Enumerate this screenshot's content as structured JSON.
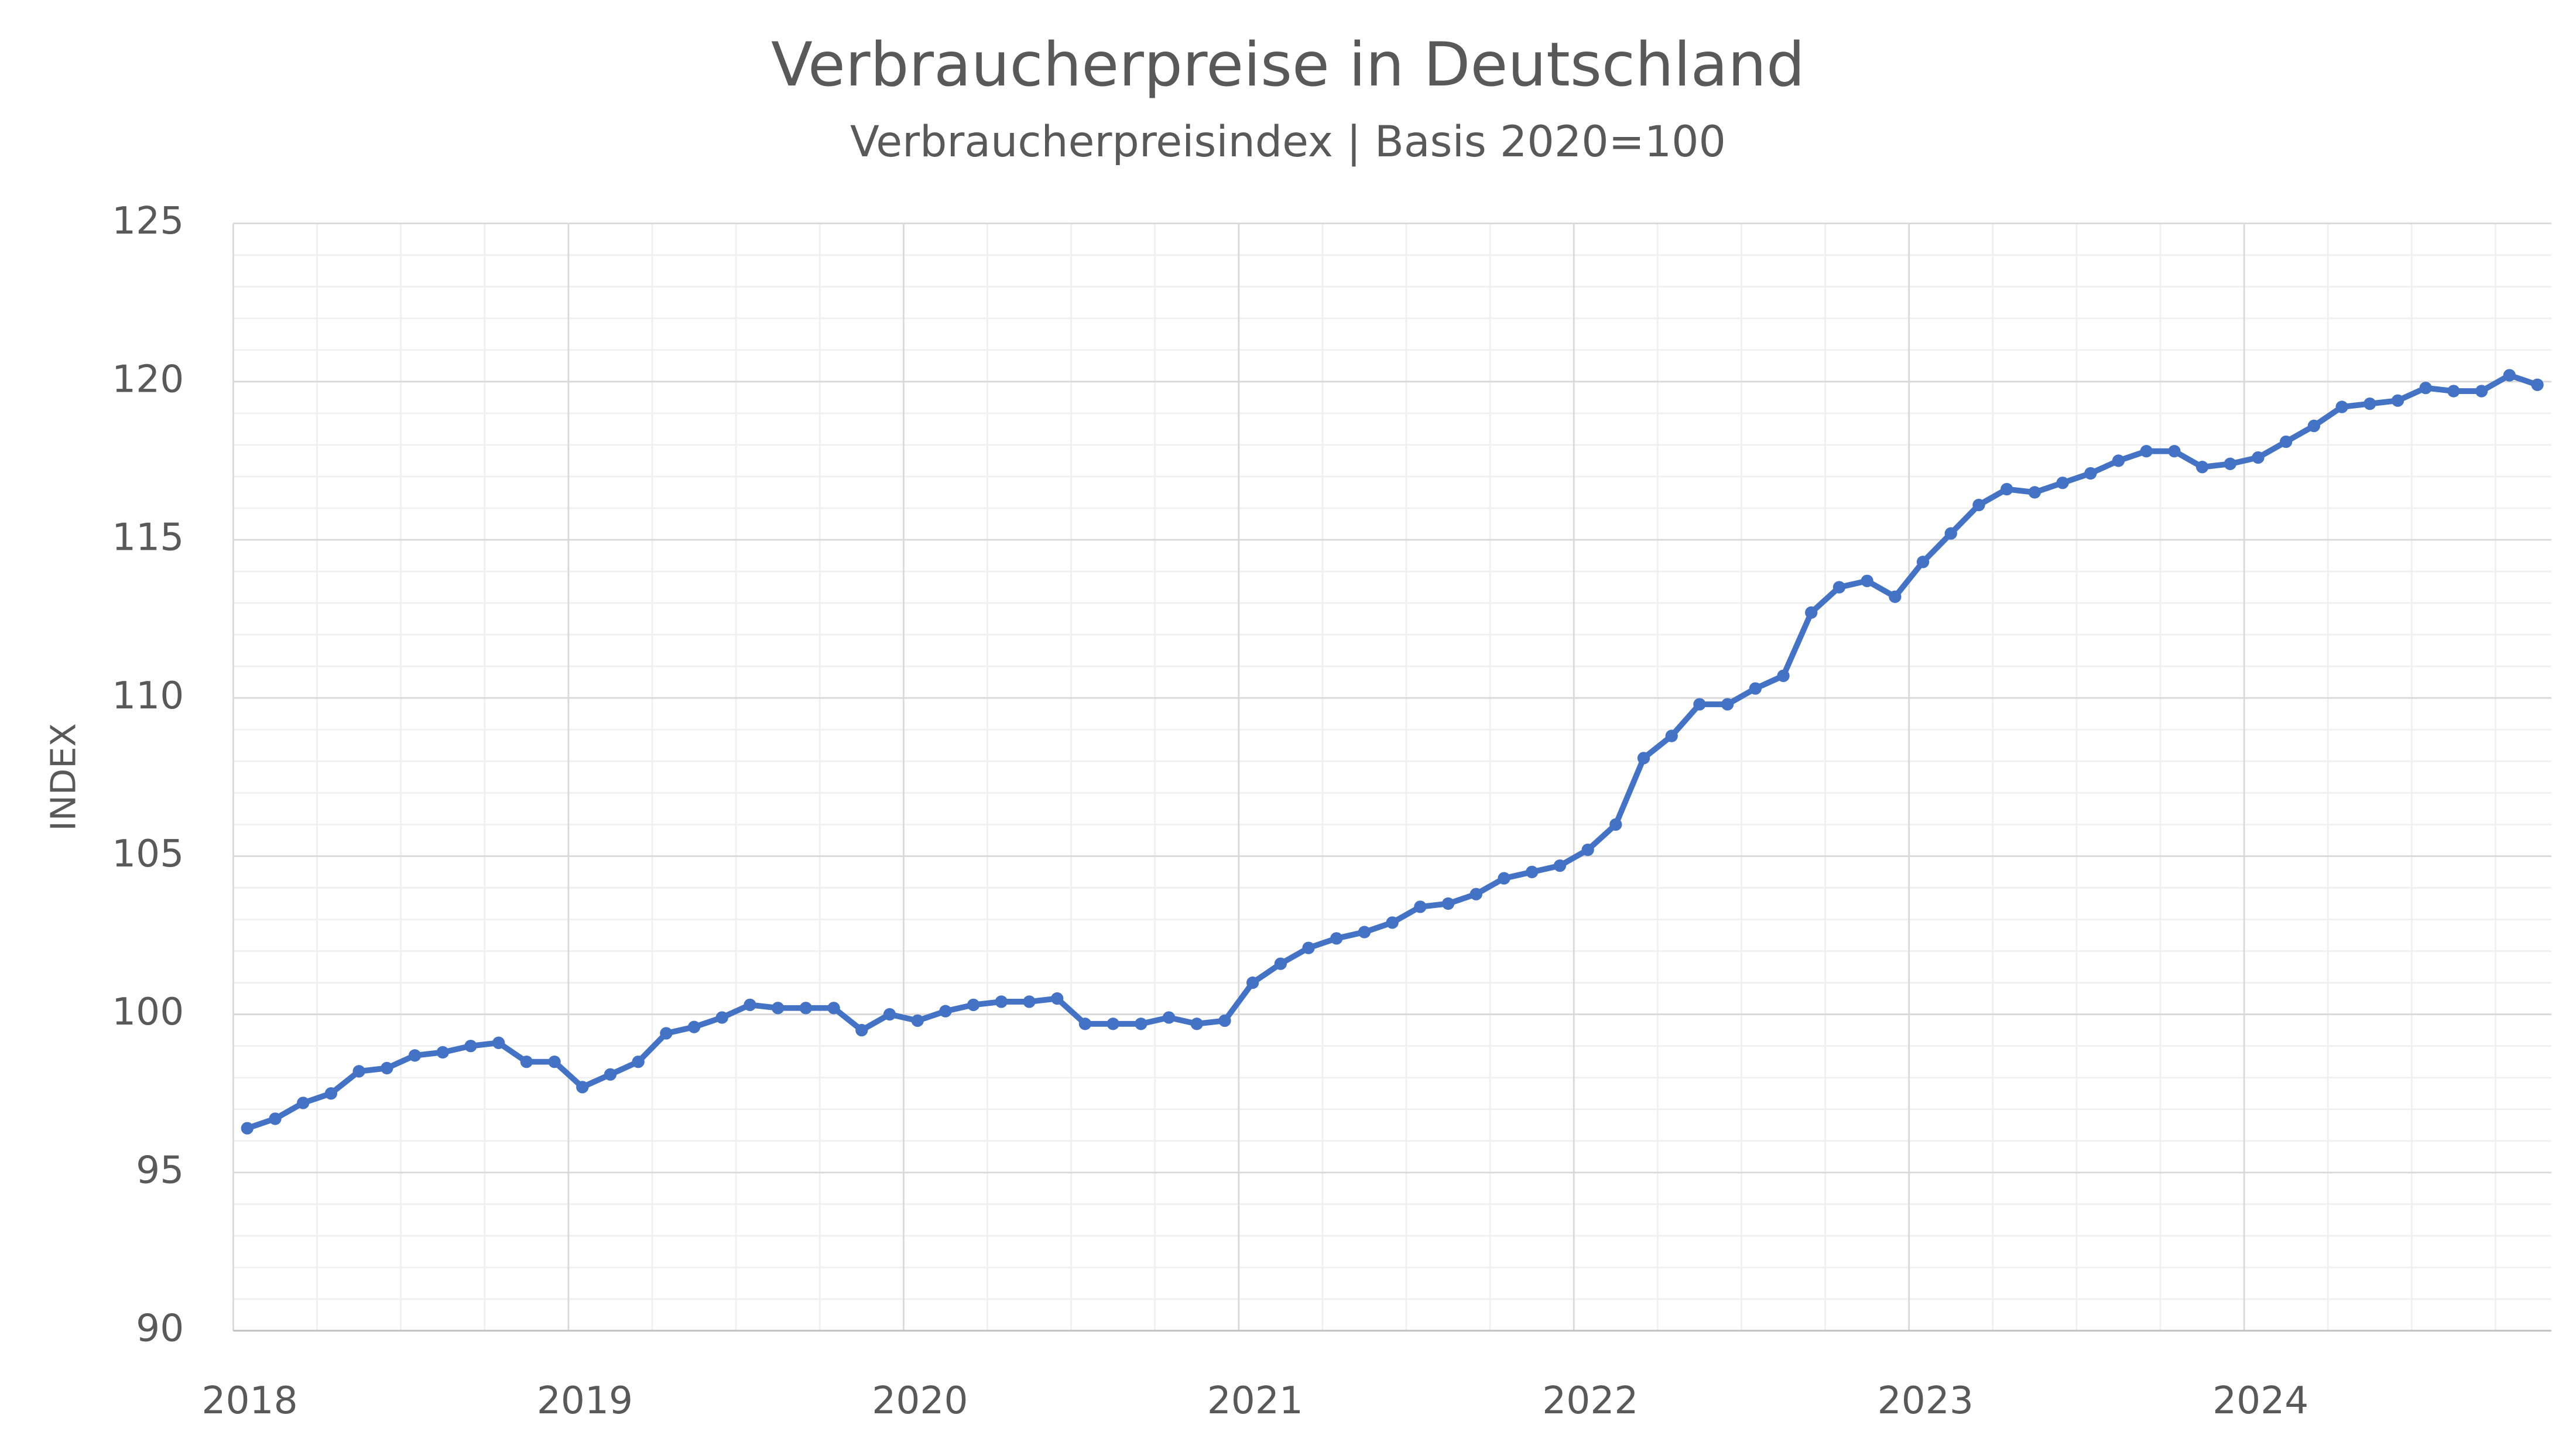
{
  "chart_data": {
    "type": "line",
    "title": "Verbraucherpreise in Deutschland",
    "subtitle": "Verbraucherpreisindex | Basis 2020=100",
    "y_label": "INDEX",
    "categories": [
      "2018",
      null,
      null,
      null,
      null,
      null,
      null,
      null,
      null,
      null,
      null,
      null,
      "2019",
      null,
      null,
      null,
      null,
      null,
      null,
      null,
      null,
      null,
      null,
      null,
      "2020",
      null,
      null,
      null,
      null,
      null,
      null,
      null,
      null,
      null,
      null,
      null,
      "2021",
      null,
      null,
      null,
      null,
      null,
      null,
      null,
      null,
      null,
      null,
      null,
      "2022",
      null,
      null,
      null,
      null,
      null,
      null,
      null,
      null,
      null,
      null,
      null,
      "2023",
      null,
      null,
      null,
      null,
      null,
      null,
      null,
      null,
      null,
      null,
      null,
      "2024",
      null,
      null,
      null,
      null,
      null,
      null,
      null,
      null,
      null,
      null
    ],
    "values": [
      96.4,
      96.7,
      97.2,
      97.5,
      98.2,
      98.3,
      98.7,
      98.8,
      99.0,
      99.1,
      98.5,
      98.5,
      97.7,
      98.1,
      98.5,
      99.4,
      99.6,
      99.9,
      100.3,
      100.2,
      100.2,
      100.2,
      99.5,
      100.0,
      99.8,
      100.1,
      100.3,
      100.4,
      100.4,
      100.5,
      99.7,
      99.7,
      99.7,
      99.9,
      99.7,
      99.8,
      101.0,
      101.6,
      102.1,
      102.4,
      102.6,
      102.9,
      103.4,
      103.5,
      103.8,
      104.3,
      104.5,
      104.7,
      105.2,
      106.0,
      108.1,
      108.8,
      109.8,
      109.8,
      110.3,
      110.7,
      112.7,
      113.5,
      113.7,
      113.2,
      114.3,
      115.2,
      116.1,
      116.6,
      116.5,
      116.8,
      117.1,
      117.5,
      117.8,
      117.8,
      117.3,
      117.4,
      117.6,
      118.1,
      118.6,
      119.2,
      119.3,
      119.4,
      119.8,
      119.7,
      119.7,
      120.2,
      119.9
    ],
    "color": "#4472c4",
    "ylim": [
      90,
      125
    ],
    "yticks": [
      90,
      95,
      100,
      105,
      110,
      115,
      120,
      125
    ],
    "grid": true
  }
}
